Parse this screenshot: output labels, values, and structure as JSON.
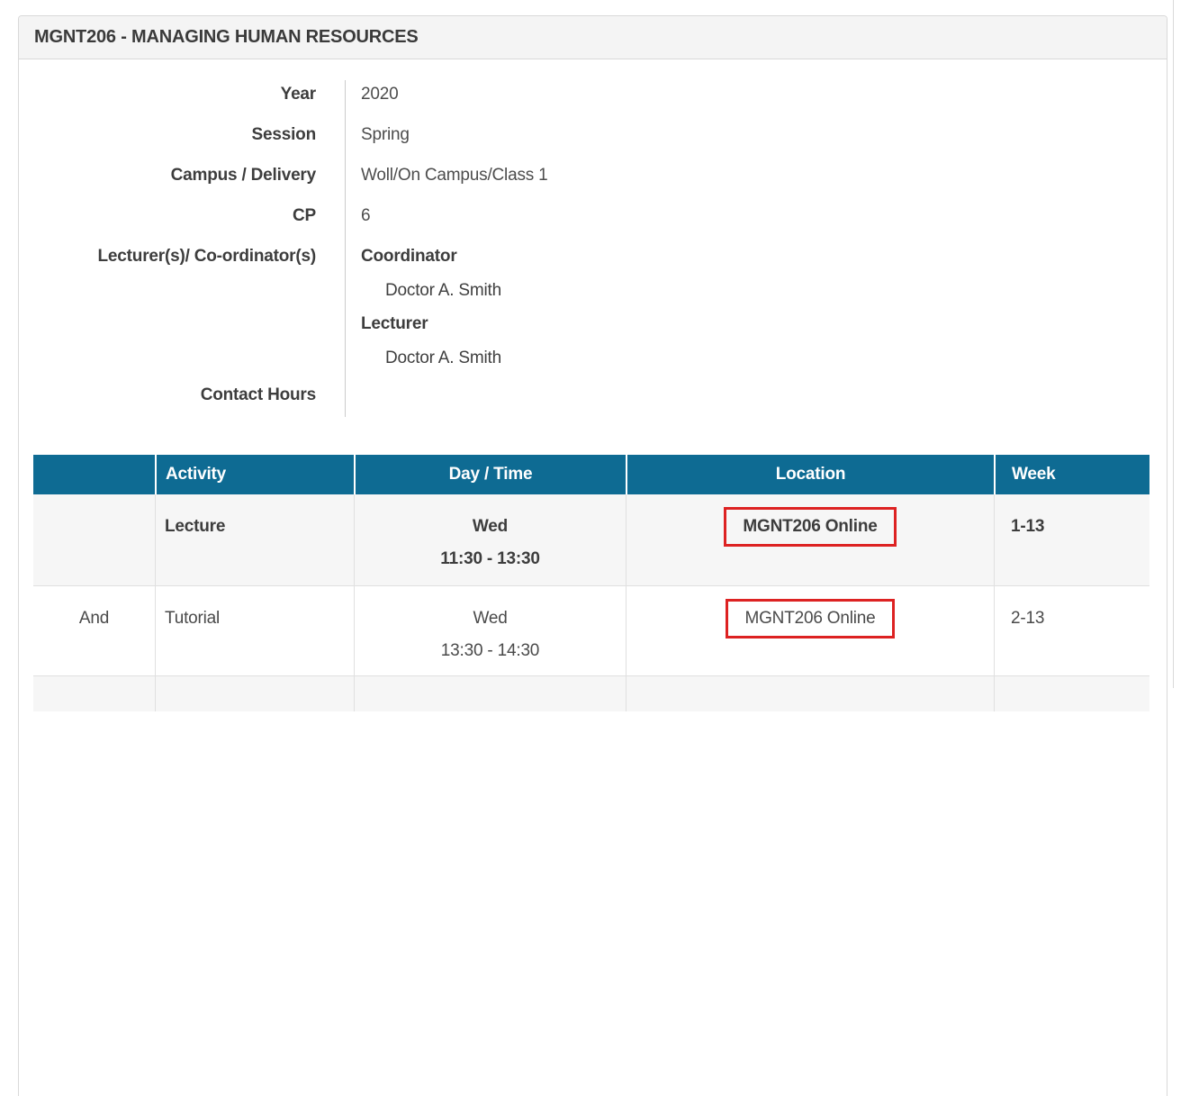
{
  "header": {
    "title": "MGNT206 - MANAGING HUMAN RESOURCES"
  },
  "details": {
    "rows": [
      {
        "label": "Year",
        "value": "2020"
      },
      {
        "label": "Session",
        "value": "Spring"
      },
      {
        "label": "Campus / Delivery",
        "value": "Woll/On Campus/Class 1"
      },
      {
        "label": "CP",
        "value": "6"
      }
    ],
    "lecturers_label": "Lecturer(s)/ Co-ordinator(s)",
    "lecturers": [
      {
        "role": "Coordinator",
        "name": "Doctor A. Smith"
      },
      {
        "role": "Lecturer",
        "name": "Doctor A. Smith"
      }
    ],
    "contact_hours_label": "Contact Hours",
    "contact_hours_value": ""
  },
  "timetable": {
    "columns": [
      "",
      "Activity",
      "Day / Time",
      "Location",
      "Week"
    ],
    "rows": [
      {
        "connector": "",
        "activity": "Lecture",
        "day": "Wed",
        "time": "11:30 - 13:30",
        "location": "MGNT206 Online",
        "week": "1-13"
      },
      {
        "connector": "And",
        "activity": "Tutorial",
        "day": "Wed",
        "time": "13:30 - 14:30",
        "location": "MGNT206 Online",
        "week": "2-13"
      }
    ]
  },
  "colors": {
    "table_header_bg": "#0e6b93",
    "highlight_border": "#dd2222",
    "row_alt_bg": "#f6f6f6",
    "panel_header_bg": "#f4f4f4"
  }
}
